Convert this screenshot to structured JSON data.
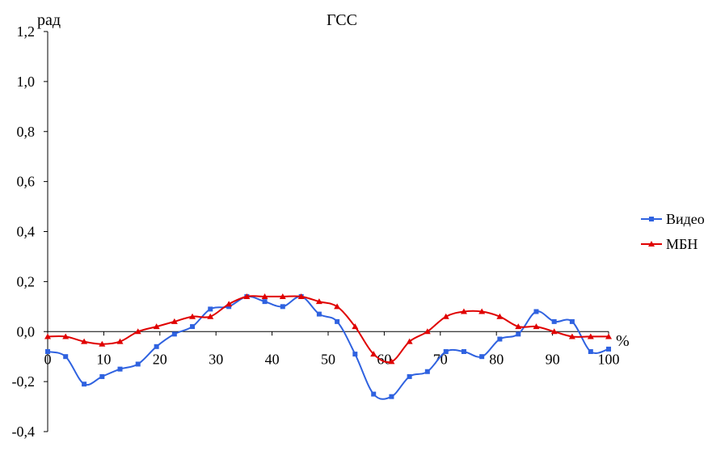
{
  "chart_data": {
    "type": "line",
    "title": "ГСС",
    "ylabel": "рад",
    "xlabel": "%",
    "xlim": [
      0,
      100
    ],
    "ylim": [
      -0.4,
      1.2
    ],
    "yticks": [
      "1,2",
      "1,0",
      "0,8",
      "0,6",
      "0,4",
      "0,2",
      "0,0",
      "-0,2",
      "-0,4"
    ],
    "xticks": [
      "0",
      "10",
      "20",
      "30",
      "40",
      "50",
      "60",
      "70",
      "80",
      "90",
      "100"
    ],
    "legend_position": "right",
    "series": [
      {
        "name": "Видео",
        "color": "#2f62e0",
        "marker": "square",
        "x": [
          0,
          3.2,
          6.5,
          9.7,
          12.9,
          16.1,
          19.4,
          22.6,
          25.8,
          29.0,
          32.3,
          35.5,
          38.7,
          41.9,
          45.2,
          48.4,
          51.6,
          54.8,
          58.1,
          61.3,
          64.5,
          67.7,
          71.0,
          74.2,
          77.4,
          80.6,
          83.9,
          87.1,
          90.3,
          93.5,
          96.8,
          100
        ],
        "values": [
          -0.08,
          -0.1,
          -0.21,
          -0.18,
          -0.15,
          -0.13,
          -0.06,
          -0.01,
          0.02,
          0.09,
          0.1,
          0.14,
          0.12,
          0.1,
          0.14,
          0.07,
          0.04,
          -0.09,
          -0.25,
          -0.26,
          -0.18,
          -0.16,
          -0.08,
          -0.08,
          -0.1,
          -0.03,
          -0.01,
          0.08,
          0.04,
          0.04,
          -0.08,
          -0.07
        ]
      },
      {
        "name": "МБН",
        "color": "#e00000",
        "marker": "triangle",
        "x": [
          0,
          3.2,
          6.5,
          9.7,
          12.9,
          16.1,
          19.4,
          22.6,
          25.8,
          29.0,
          32.3,
          35.5,
          38.7,
          41.9,
          45.2,
          48.4,
          51.6,
          54.8,
          58.1,
          61.3,
          64.5,
          67.7,
          71.0,
          74.2,
          77.4,
          80.6,
          83.9,
          87.1,
          90.3,
          93.5,
          96.8,
          100
        ],
        "values": [
          -0.02,
          -0.02,
          -0.04,
          -0.05,
          -0.04,
          0.0,
          0.02,
          0.04,
          0.06,
          0.06,
          0.11,
          0.14,
          0.14,
          0.14,
          0.14,
          0.12,
          0.1,
          0.02,
          -0.09,
          -0.12,
          -0.04,
          0.0,
          0.06,
          0.08,
          0.08,
          0.06,
          0.02,
          0.02,
          0.0,
          -0.02,
          -0.02,
          -0.02
        ]
      }
    ]
  }
}
